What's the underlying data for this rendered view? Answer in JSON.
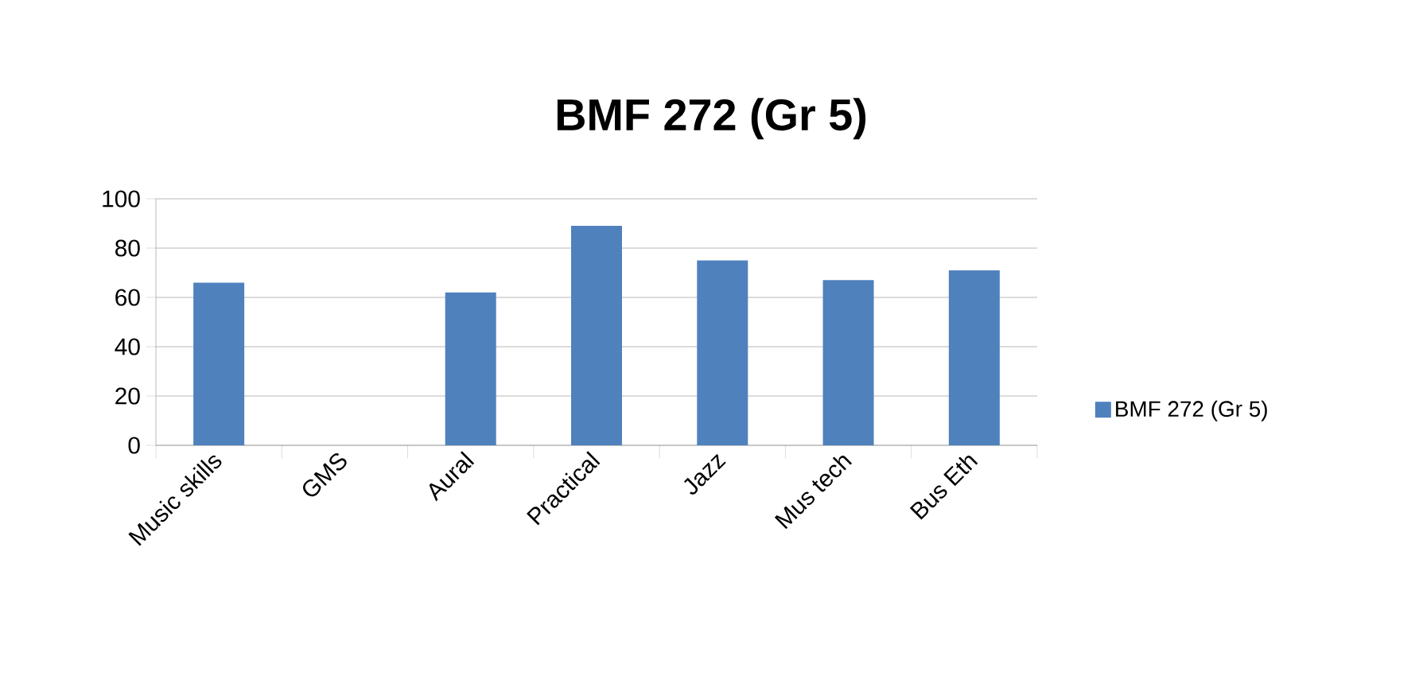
{
  "chart_data": {
    "type": "bar",
    "title": "BMF 272 (Gr 5)",
    "categories": [
      "Music skills",
      "GMS",
      "Aural",
      "Practical",
      "Jazz",
      "Mus tech",
      "Bus Eth"
    ],
    "series": [
      {
        "name": "BMF 272 (Gr 5)",
        "color": "#4f81bd",
        "values": [
          66,
          null,
          62,
          89,
          75,
          67,
          71
        ]
      }
    ],
    "ylim": [
      0,
      100
    ],
    "yticks": [
      0,
      20,
      40,
      60,
      80,
      100
    ],
    "grid": "y",
    "legend": "right"
  }
}
